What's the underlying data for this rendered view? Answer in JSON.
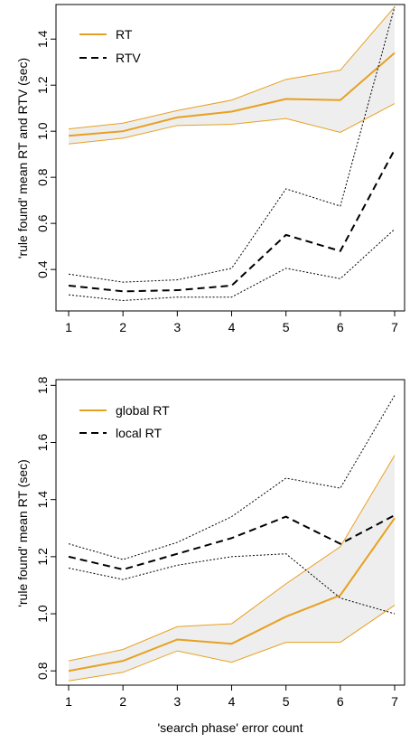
{
  "colors": {
    "orange": "#E8A020",
    "black": "#000000",
    "band": "#EEEEEE"
  },
  "chart_data": [
    {
      "type": "line",
      "title": "",
      "xlabel": "",
      "ylabel": "'rule found' mean RT and RTV (sec)",
      "x": [
        1,
        2,
        3,
        4,
        5,
        6,
        7
      ],
      "xlim": [
        1,
        7
      ],
      "ylim": [
        0.22,
        1.55
      ],
      "xticks": [
        "1",
        "2",
        "3",
        "4",
        "5",
        "6",
        "7"
      ],
      "yticks": [
        0.4,
        0.6,
        0.8,
        1.0,
        1.2,
        1.4
      ],
      "yticklabels": [
        "0.4",
        "0.6",
        "0.8",
        "1.0",
        "1.2",
        "1.4"
      ],
      "legend_position": "top-left",
      "grid": false,
      "series": [
        {
          "name": "RT",
          "style": "solid",
          "color": "orange",
          "values": [
            0.98,
            1.0,
            1.06,
            1.085,
            1.14,
            1.135,
            1.34
          ]
        },
        {
          "name": "",
          "style": "band-upper",
          "color": "orange",
          "values": [
            1.01,
            1.035,
            1.09,
            1.135,
            1.225,
            1.265,
            1.54
          ]
        },
        {
          "name": "",
          "style": "band-lower",
          "color": "orange",
          "values": [
            0.945,
            0.97,
            1.025,
            1.03,
            1.055,
            0.995,
            1.12
          ]
        },
        {
          "name": "RTV",
          "style": "dashed",
          "color": "black",
          "values": [
            0.33,
            0.305,
            0.31,
            0.33,
            0.55,
            0.48,
            0.92
          ]
        },
        {
          "name": "",
          "style": "dotted",
          "color": "black",
          "values": [
            0.38,
            0.345,
            0.355,
            0.405,
            0.75,
            0.675,
            1.54
          ]
        },
        {
          "name": "",
          "style": "dotted",
          "color": "black",
          "values": [
            0.29,
            0.265,
            0.28,
            0.28,
            0.405,
            0.36,
            0.575
          ]
        }
      ]
    },
    {
      "type": "line",
      "title": "",
      "xlabel": "'search phase' error count",
      "ylabel": "'rule found' mean RT (sec)",
      "x": [
        1,
        2,
        3,
        4,
        5,
        6,
        7
      ],
      "xlim": [
        1,
        7
      ],
      "ylim": [
        0.75,
        1.82
      ],
      "xticks": [
        "1",
        "2",
        "3",
        "4",
        "5",
        "6",
        "7"
      ],
      "yticks": [
        0.8,
        1.0,
        1.2,
        1.4,
        1.6,
        1.8
      ],
      "yticklabels": [
        "0.8",
        "1.0",
        "1.2",
        "1.4",
        "1.6",
        "1.8"
      ],
      "legend_position": "top-left",
      "grid": false,
      "series": [
        {
          "name": "global RT",
          "style": "solid",
          "color": "orange",
          "values": [
            0.8,
            0.835,
            0.91,
            0.895,
            0.99,
            1.065,
            1.335
          ]
        },
        {
          "name": "",
          "style": "band-upper",
          "color": "orange",
          "values": [
            0.835,
            0.875,
            0.955,
            0.965,
            1.105,
            1.235,
            1.555
          ]
        },
        {
          "name": "",
          "style": "band-lower",
          "color": "orange",
          "values": [
            0.765,
            0.795,
            0.87,
            0.83,
            0.9,
            0.9,
            1.03
          ]
        },
        {
          "name": "local RT",
          "style": "dashed",
          "color": "black",
          "values": [
            1.2,
            1.155,
            1.21,
            1.265,
            1.34,
            1.245,
            1.345
          ]
        },
        {
          "name": "",
          "style": "dotted",
          "color": "black",
          "values": [
            1.245,
            1.19,
            1.25,
            1.34,
            1.475,
            1.44,
            1.765
          ]
        },
        {
          "name": "",
          "style": "dotted",
          "color": "black",
          "values": [
            1.16,
            1.12,
            1.17,
            1.2,
            1.21,
            1.055,
            1.0
          ]
        }
      ]
    }
  ]
}
